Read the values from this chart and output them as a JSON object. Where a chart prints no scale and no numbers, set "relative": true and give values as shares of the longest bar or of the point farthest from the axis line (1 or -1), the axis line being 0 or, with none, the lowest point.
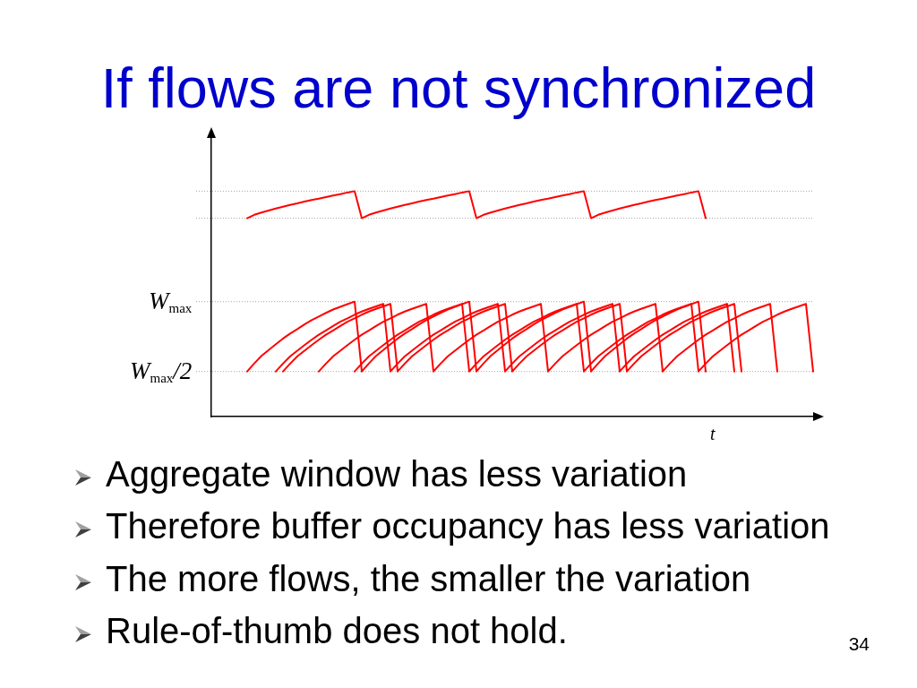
{
  "chart_data": {
    "type": "line",
    "title": "If flows are not synchronized",
    "xlabel": "t",
    "relative": true,
    "line_style": "solid",
    "categories": [
      null,
      null,
      null,
      null,
      null,
      null,
      null,
      null,
      null,
      null,
      null,
      null,
      null,
      null,
      null,
      null,
      null,
      null,
      null,
      null,
      null,
      null,
      null,
      null,
      null,
      null,
      null,
      null,
      null,
      null,
      null,
      null,
      null,
      null,
      null,
      null,
      null,
      null,
      null,
      null,
      null,
      null,
      null,
      null,
      null,
      null,
      null,
      null,
      null,
      null,
      null,
      null,
      null,
      null,
      null,
      null,
      null,
      null,
      null,
      null,
      null,
      null,
      null,
      null,
      null,
      null,
      null,
      null,
      null,
      null,
      null,
      null,
      null,
      null,
      null,
      null,
      null,
      null,
      null,
      null,
      null,
      null,
      null,
      null,
      null
    ],
    "series": [
      {
        "color": "#ff0000",
        "values": [
          null,
          null,
          null,
          null,
          null,
          0.88,
          0.895,
          0.905,
          0.914,
          0.923,
          0.931,
          0.939,
          0.946,
          0.954,
          0.961,
          0.967,
          0.974,
          0.981,
          0.987,
          0.994,
          1,
          0.88,
          0.895,
          0.905,
          0.914,
          0.923,
          0.931,
          0.939,
          0.946,
          0.954,
          0.961,
          0.967,
          0.974,
          0.981,
          0.987,
          0.994,
          1,
          0.88,
          0.895,
          0.905,
          0.914,
          0.923,
          0.931,
          0.939,
          0.946,
          0.954,
          0.961,
          0.967,
          0.974,
          0.981,
          0.987,
          0.994,
          1,
          0.88,
          0.895,
          0.905,
          0.914,
          0.923,
          0.931,
          0.939,
          0.946,
          0.954,
          0.961,
          0.967,
          0.974,
          0.981,
          0.987,
          0.994,
          1,
          0.88,
          null,
          null,
          null,
          null,
          null,
          null,
          null,
          null,
          null,
          null,
          null,
          null,
          null,
          null,
          null
        ]
      },
      {
        "color": "#ff0000",
        "values": [
          null,
          null,
          null,
          null,
          null,
          0.2,
          0.236,
          0.269,
          0.295,
          0.321,
          0.346,
          0.368,
          0.388,
          0.409,
          0.428,
          0.444,
          0.46,
          0.475,
          0.487,
          0.499,
          0.51,
          0.2,
          0.236,
          0.269,
          0.295,
          0.321,
          0.346,
          0.368,
          0.388,
          0.409,
          0.428,
          0.444,
          0.46,
          0.475,
          0.487,
          0.499,
          0.51,
          0.2,
          0.236,
          0.269,
          0.295,
          0.321,
          0.346,
          0.368,
          0.388,
          0.409,
          0.428,
          0.444,
          0.46,
          0.475,
          0.487,
          0.499,
          0.51,
          0.2,
          0.236,
          0.269,
          0.295,
          0.321,
          0.346,
          0.368,
          0.388,
          0.409,
          0.428,
          0.444,
          0.46,
          0.475,
          0.487,
          0.499,
          0.51,
          0.2,
          null,
          null,
          null,
          null,
          null,
          null,
          null,
          null,
          null,
          null,
          null,
          null,
          null,
          null,
          null
        ]
      },
      {
        "color": "#ff0000",
        "values": [
          null,
          null,
          null,
          null,
          null,
          null,
          null,
          null,
          null,
          0.2,
          0.235,
          0.267,
          0.292,
          0.317,
          0.341,
          0.363,
          0.382,
          0.402,
          0.421,
          0.436,
          0.452,
          0.466,
          0.478,
          0.489,
          0.5,
          0.2,
          0.235,
          0.267,
          0.292,
          0.317,
          0.341,
          0.363,
          0.382,
          0.402,
          0.421,
          0.436,
          0.452,
          0.466,
          0.478,
          0.489,
          0.5,
          0.2,
          0.235,
          0.267,
          0.292,
          0.317,
          0.341,
          0.363,
          0.382,
          0.402,
          0.421,
          0.436,
          0.452,
          0.466,
          0.478,
          0.489,
          0.5,
          0.2,
          0.235,
          0.267,
          0.292,
          0.317,
          0.341,
          0.363,
          0.382,
          0.402,
          0.421,
          0.436,
          0.452,
          0.466,
          0.478,
          0.489,
          0.5,
          0.2,
          null,
          null,
          null,
          null,
          null,
          null,
          null,
          null,
          null,
          null,
          null
        ]
      },
      {
        "color": "#ff0000",
        "values": [
          null,
          null,
          null,
          null,
          null,
          null,
          null,
          null,
          null,
          null,
          0.2,
          0.235,
          0.267,
          0.292,
          0.317,
          0.341,
          0.363,
          0.382,
          0.402,
          0.421,
          0.436,
          0.452,
          0.466,
          0.478,
          0.489,
          0.5,
          0.2,
          0.235,
          0.267,
          0.292,
          0.317,
          0.341,
          0.363,
          0.382,
          0.402,
          0.421,
          0.436,
          0.452,
          0.466,
          0.478,
          0.489,
          0.5,
          0.2,
          0.235,
          0.267,
          0.292,
          0.317,
          0.341,
          0.363,
          0.382,
          0.402,
          0.421,
          0.436,
          0.452,
          0.466,
          0.478,
          0.489,
          0.5,
          0.2,
          0.235,
          0.267,
          0.292,
          0.317,
          0.341,
          0.363,
          0.382,
          0.402,
          0.421,
          0.436,
          0.452,
          0.466,
          0.478,
          0.489,
          0.5,
          0.2,
          null,
          null,
          null,
          null,
          null,
          null,
          null,
          null,
          null,
          null
        ]
      },
      {
        "color": "#ff0000",
        "values": [
          null,
          null,
          null,
          null,
          null,
          null,
          null,
          null,
          null,
          null,
          null,
          null,
          null,
          null,
          null,
          0.2,
          0.235,
          0.267,
          0.292,
          0.317,
          0.341,
          0.363,
          0.382,
          0.402,
          0.421,
          0.436,
          0.452,
          0.466,
          0.478,
          0.489,
          0.5,
          0.2,
          0.235,
          0.267,
          0.292,
          0.317,
          0.341,
          0.363,
          0.382,
          0.402,
          0.421,
          0.436,
          0.452,
          0.466,
          0.478,
          0.489,
          0.5,
          0.2,
          0.235,
          0.267,
          0.292,
          0.317,
          0.341,
          0.363,
          0.382,
          0.402,
          0.421,
          0.436,
          0.452,
          0.466,
          0.478,
          0.489,
          0.5,
          0.2,
          0.235,
          0.267,
          0.292,
          0.317,
          0.341,
          0.363,
          0.382,
          0.402,
          0.421,
          0.436,
          0.452,
          0.466,
          0.478,
          0.489,
          0.5,
          0.2,
          null,
          null,
          null,
          null,
          null
        ]
      },
      {
        "color": "#ff0000",
        "values": [
          null,
          null,
          null,
          null,
          null,
          null,
          null,
          null,
          null,
          null,
          null,
          null,
          null,
          null,
          null,
          null,
          null,
          null,
          null,
          null,
          0.2,
          0.235,
          0.267,
          0.292,
          0.317,
          0.341,
          0.363,
          0.382,
          0.402,
          0.421,
          0.436,
          0.452,
          0.466,
          0.478,
          0.489,
          0.5,
          0.2,
          0.235,
          0.267,
          0.292,
          0.317,
          0.341,
          0.363,
          0.382,
          0.402,
          0.421,
          0.436,
          0.452,
          0.466,
          0.478,
          0.489,
          0.5,
          0.2,
          0.235,
          0.267,
          0.292,
          0.317,
          0.341,
          0.363,
          0.382,
          0.402,
          0.421,
          0.436,
          0.452,
          0.466,
          0.478,
          0.489,
          0.5,
          0.2,
          0.235,
          0.267,
          0.292,
          0.317,
          0.341,
          0.363,
          0.382,
          0.402,
          0.421,
          0.436,
          0.452,
          0.466,
          0.478,
          0.489,
          0.5,
          0.2
        ]
      }
    ],
    "ref_lines": [
      {
        "axis": "y",
        "value": 1,
        "color": "#a6a6a6",
        "line_style": "dotted"
      },
      {
        "axis": "y",
        "value": 0.88,
        "color": "#a6a6a6",
        "line_style": "dotted"
      },
      {
        "axis": "y",
        "value": 0.51,
        "label": "W$_{max}$",
        "color": "#a6a6a6",
        "line_style": "dotted"
      },
      {
        "axis": "y",
        "value": 0.2,
        "label": "W$_{max}$/2",
        "color": "#a6a6a6",
        "line_style": "dotted"
      }
    ],
    "annotations": [
      "Aggregate window has less variation",
      "Therefore buffer occupancy has less variation",
      "The more flows, the smaller the variation",
      "Rule-of-thumb does not hold.",
      "34"
    ]
  }
}
